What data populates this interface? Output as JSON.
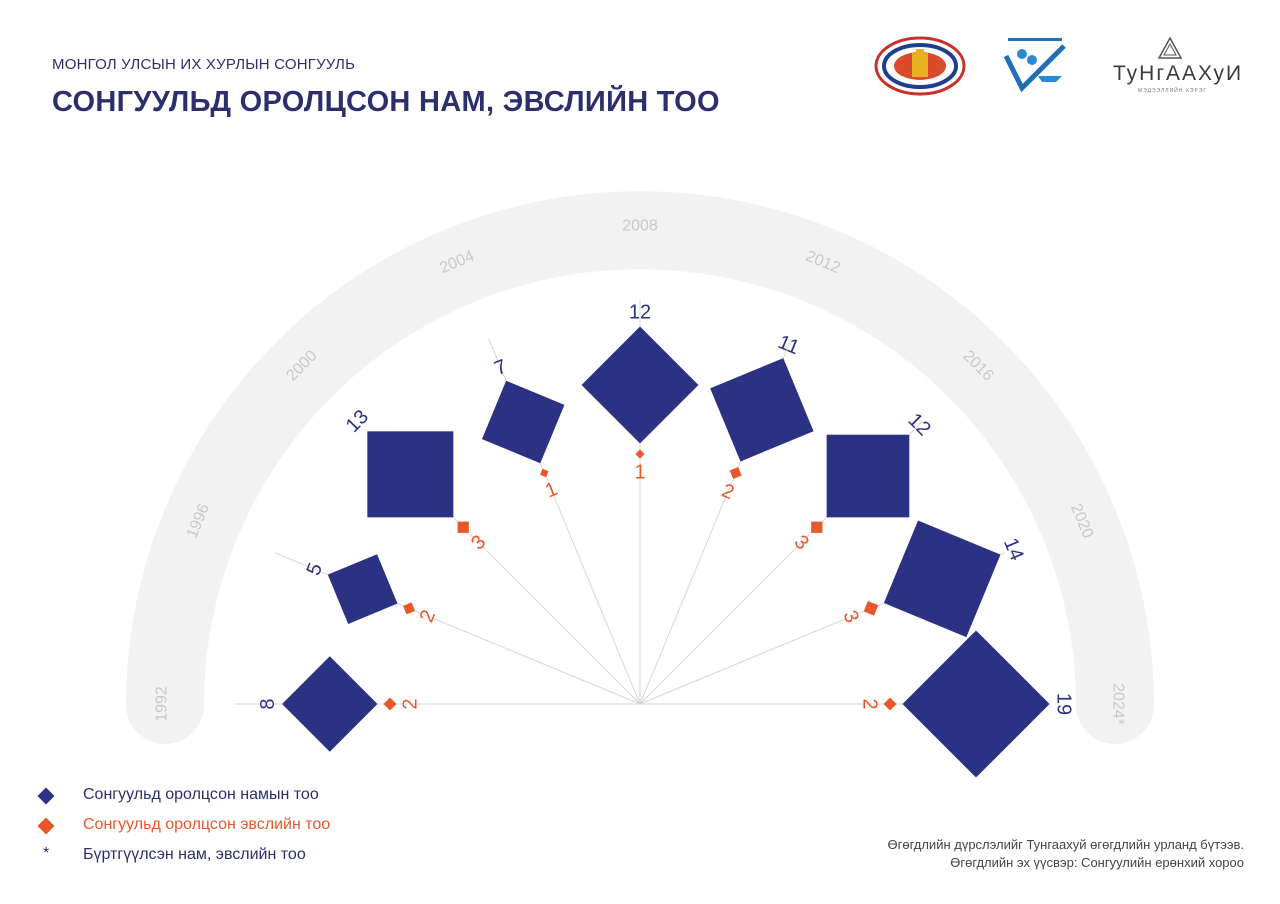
{
  "header": {
    "subtitle": "МОНГОЛ УЛСЫН ИХ ХУРЛЫН СОНГУУЛЬ",
    "title": "СОНГУУЛЬД ОРОЛЦСОН НАМ, ЭВСЛИЙН ТОО"
  },
  "logos": {
    "brand_text": "ТуНгААХуИ",
    "brand_sub": "МЭДЭЭЛЛИЙН ХЭРЭГ"
  },
  "chart_data": {
    "type": "radial",
    "categories": [
      "1992",
      "1996",
      "2000",
      "2004",
      "2008",
      "2012",
      "2016",
      "2020",
      "2024*"
    ],
    "series": [
      {
        "name": "Сонгуульд оролцсон намын тоо",
        "color": "#2b3183",
        "values": [
          8,
          5,
          13,
          7,
          12,
          11,
          12,
          14,
          19
        ]
      },
      {
        "name": "Сонгуульд оролцсон эвслийн тоо",
        "color": "#e8572a",
        "values": [
          2,
          2,
          3,
          1,
          1,
          2,
          3,
          3,
          2
        ]
      }
    ]
  },
  "legend": {
    "items": [
      {
        "label": "Сонгуульд оролцсон намын тоо",
        "color": "#2b3183"
      },
      {
        "label": "Сонгуульд оролцсон эвслийн тоо",
        "color": "#e8572a"
      },
      {
        "label": "Бүртгүүлсэн нам, эвслийн тоо",
        "symbol": "*"
      }
    ]
  },
  "footnote": {
    "line1": "Өгөгдлийн дүрслэлийг Тунгаахуй өгөгдлийн урланд бүтээв.",
    "line2": "Өгөгдлийн эх үүсвэр: Сонгуулийн ерөнхий хороо"
  }
}
